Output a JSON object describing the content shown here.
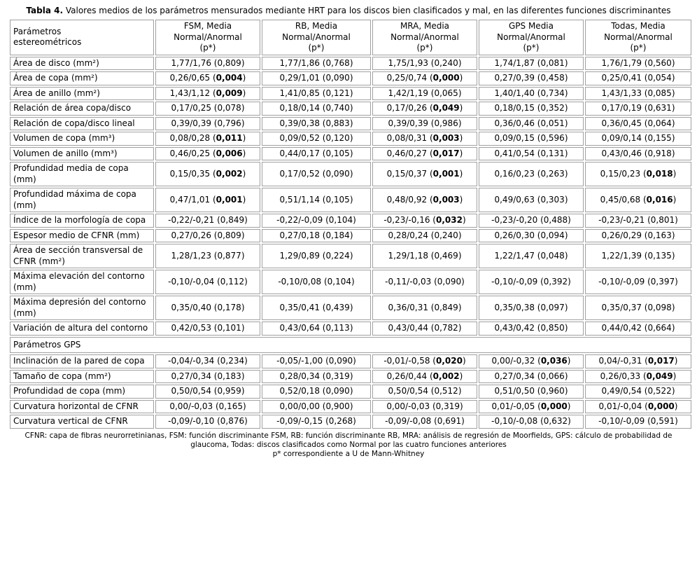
{
  "title": {
    "label": "Tabla 4.",
    "text": "Valores medios de los parámetros mensurados mediante HRT para los discos bien clasificados y mal, en las diferentes funciones discriminantes"
  },
  "table": {
    "header": [
      [
        "Parámetros",
        "estereométricos"
      ],
      [
        "FSM,  Media",
        "Normal/Anormal",
        "(p*)"
      ],
      [
        "RB,  Media",
        "Normal/Anormal",
        "(p*)"
      ],
      [
        "MRA, Media",
        "Normal/Anormal",
        "(p*)"
      ],
      [
        "GPS  Media",
        "Normal/Anormal",
        "(p*)"
      ],
      [
        "Todas,  Media",
        "Normal/Anormal",
        "(p*)"
      ]
    ],
    "rows": [
      {
        "label": "Área de disco (mm²)",
        "cells": [
          "1,77/1,76 (0,809)",
          "1,77/1,86 (0,768)",
          "1,75/1,93 (0,240)",
          "1,74/1,87 (0,081)",
          "1,76/1,79 (0,560)"
        ]
      },
      {
        "label": "Área de copa (mm²)",
        "cells": [
          [
            "0,26/0,65 (",
            "0,004",
            ")"
          ],
          "0,29/1,01 (0,090)",
          [
            "0,25/0,74 (",
            "0,000",
            ")"
          ],
          "0,27/0,39 (0,458)",
          "0,25/0,41 (0,054)"
        ]
      },
      {
        "label": "Área de anillo (mm²)",
        "cells": [
          [
            "1,43/1,12 (",
            "0,009",
            ")"
          ],
          "1,41/0,85 (0,121)",
          "1,42/1,19 (0,065)",
          "1,40/1,40 (0,734)",
          "1,43/1,33 (0,085)"
        ]
      },
      {
        "label": "Relación de área copa/disco",
        "cells": [
          "0,17/0,25 (0,078)",
          "0,18/0,14 (0,740)",
          [
            "0,17/0,26 (",
            "0,049",
            ")"
          ],
          "0,18/0,15 (0,352)",
          "0,17/0,19 (0,631)"
        ]
      },
      {
        "label": "Relación de copa/disco lineal",
        "cells": [
          "0,39/0,39 (0,796)",
          "0,39/0,38 (0,883)",
          "0,39/0,39 (0,986)",
          "0,36/0,46 (0,051)",
          "0,36/0,45 (0,064)"
        ]
      },
      {
        "label": "Volumen de copa (mm³)",
        "cells": [
          [
            "0,08/0,28 (",
            "0,011",
            ")"
          ],
          "0,09/0,52 (0,120)",
          [
            "0,08/0,31 (",
            "0,003",
            ")"
          ],
          "0,09/0,15 (0,596)",
          "0,09/0,14 (0,155)"
        ]
      },
      {
        "label": "Volumen de anillo  (mm³)",
        "cells": [
          [
            "0,46/0,25 (",
            "0,006",
            ")"
          ],
          "0,44/0,17 (0,105)",
          [
            "0,46/0,27 (",
            "0,017",
            ")"
          ],
          "0,41/0,54 (0,131)",
          "0,43/0,46 (0,918)"
        ]
      },
      {
        "label": "Profundidad media de copa (mm)",
        "cells": [
          [
            "0,15/0,35 (",
            "0,002",
            ")"
          ],
          "0,17/0,52 (0,090)",
          [
            "0,15/0,37 (",
            "0,001",
            ")"
          ],
          "0,16/0,23 (0,263)",
          [
            "0,15/0,23 (",
            "0,018",
            ")"
          ]
        ]
      },
      {
        "label": "Profundidad máxima de copa (mm)",
        "cells": [
          [
            "0,47/1,01 (",
            "0,001",
            ")"
          ],
          "0,51/1,14 (0,105)",
          [
            "0,48/0,92 (",
            "0,003",
            ")"
          ],
          "0,49/0,63 (0,303)",
          [
            "0,45/0,68 (",
            "0,016",
            ")"
          ]
        ]
      },
      {
        "label": "Índice de la morfología de copa",
        "cells": [
          "-0,22/-0,21 (0,849)",
          "-0,22/-0,09 (0,104)",
          [
            "-0,23/-0,16 (",
            "0,032",
            ")"
          ],
          "-0,23/-0,20 (0,488)",
          "-0,23/-0,21 (0,801)"
        ]
      },
      {
        "label": "Espesor medio de CFNR (mm)",
        "cells": [
          "0,27/0,26 (0,809)",
          "0,27/0,18 (0,184)",
          "0,28/0,24 (0,240)",
          "0,26/0,30 (0,094)",
          "0,26/0,29 (0,163)"
        ]
      },
      {
        "label": "Área de sección transversal de CFNR (mm²)",
        "cells": [
          "1,28/1,23 (0,877)",
          "1,29/0,89 (0,224)",
          "1,29/1,18 (0,469)",
          "1,22/1,47 (0,048)",
          "1,22/1,39 (0,135)"
        ]
      },
      {
        "label": "Máxima elevación del contorno (mm)",
        "cells": [
          "-0,10/-0,04 (0,112)",
          "-0,10/0,08 (0,104)",
          "-0,11/-0,03 (0,090)",
          "-0,10/-0,09 (0,392)",
          "-0,10/-0,09 (0,397)"
        ]
      },
      {
        "label": "Máxima depresión del contorno (mm)",
        "cells": [
          "0,35/0,40 (0,178)",
          "0,35/0,41 (0,439)",
          "0,36/0,31 (0,849)",
          "0,35/0,38 (0,097)",
          "0,35/0,37 (0,098)"
        ]
      },
      {
        "label": "Variación de altura del contorno",
        "cells": [
          "0,42/0,53 (0,101)",
          "0,43/0,64 (0,113)",
          "0,43/0,44 (0,782)",
          "0,43/0,42 (0,850)",
          "0,44/0,42 (0,664)"
        ]
      },
      {
        "section": "Parámetros GPS"
      },
      {
        "label": "Inclinación  de la pared de copa",
        "cells": [
          "-0,04/-0,34 (0,234)",
          "-0,05/-1,00 (0,090)",
          [
            "-0,01/-0,58 (",
            "0,020",
            ")"
          ],
          [
            "0,00/-0,32 (",
            "0,036",
            ")"
          ],
          [
            "0,04/-0,31 (",
            "0,017",
            ")"
          ]
        ]
      },
      {
        "label": "Tamaño de copa (mm²)",
        "cells": [
          "0,27/0,34 (0,183)",
          "0,28/0,34 (0,319)",
          [
            "0,26/0,44 (",
            "0,002",
            ")"
          ],
          "0,27/0,34 (0,066)",
          [
            "0,26/0,33 (",
            "0,049",
            ")"
          ]
        ]
      },
      {
        "label": "Profundidad de copa (mm)",
        "cells": [
          "0,50/0,54 (0,959)",
          "0,52/0,18 (0,090)",
          "0,50/0,54 (0,512)",
          "0,51/0,50 (0,960)",
          "0,49/0,54 (0,522)"
        ]
      },
      {
        "label": "Curvatura  horizontal de CFNR",
        "cells": [
          "0,00/-0,03 (0,165)",
          "0,00/0,00 (0,900)",
          "0,00/-0,03 (0,319)",
          [
            "0,01/-0,05 (",
            "0,000",
            ")"
          ],
          [
            "0,01/-0,04 (",
            "0,000",
            ")"
          ]
        ]
      },
      {
        "label": "Curvatura  vertical de CFNR",
        "cells": [
          "-0,09/-0,10 (0,876)",
          "-0,09/-0,15 (0,268)",
          "-0,09/-0,08 (0,691)",
          "-0,10/-0,08 (0,632)",
          "-0,10/-0,09 (0,591)"
        ]
      }
    ]
  },
  "footnotes": [
    "CFNR: capa de fibras neurorretinianas, FSM: función discriminante FSM, RB: función discriminante RB, MRA: análisis de regresión de Moorfields, GPS: cálculo de probabilidad de glaucoma, Todas: discos clasificados como Normal por las cuatro funciones anteriores",
    "p* correspondiente a U de Mann-Whitney"
  ]
}
